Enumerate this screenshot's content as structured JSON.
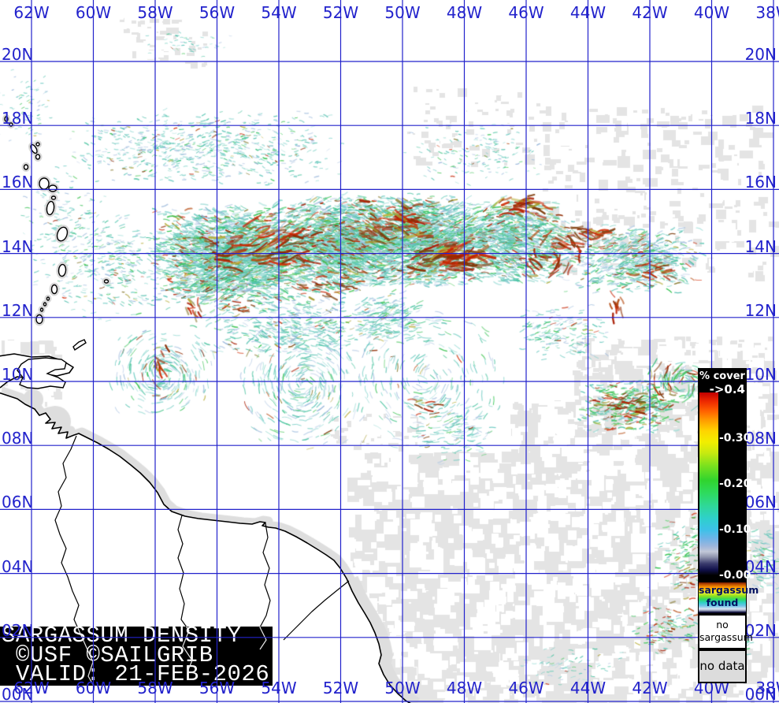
{
  "banner": {
    "line1": "SARGASSUM DENSITY",
    "line2": "©USF ©SAILGRIB",
    "line3": "VALID: 21-FEB-2026",
    "bg": "#000000",
    "fg": "#ffffff"
  },
  "legend": {
    "title": "% cover",
    "max_label": "->0.4",
    "range_max": 0.4,
    "ticks": [
      {
        "label": "-0.30",
        "value": 0.3
      },
      {
        "label": "-0.20",
        "value": 0.2
      },
      {
        "label": "-0.10",
        "value": 0.1
      },
      {
        "label": "-0.00",
        "value": 0.0
      }
    ],
    "colorbar_stops": [
      "#000000 0%",
      "#10104a 3%",
      "#3c3c6e 6.5%",
      "#8e93ad 10%",
      "#c2c8d8 13%",
      "#9db6dc 16%",
      "#6fb4e8 20%",
      "#3cc2e8 25%",
      "#2fd0cc 31%",
      "#2fd898 38%",
      "#2edb5e 45%",
      "#30d42e 52%",
      "#7ce11e 60%",
      "#c8ea10 67%",
      "#f2ee00 73%",
      "#ffd400 79%",
      "#ff9a00 85%",
      "#ff5f00 90%",
      "#ee2a00 95%",
      "#c00000 100%"
    ],
    "found_gradient_stops": [
      "#7a1e00 0%",
      "#c35400 7%",
      "#ff9800 16%",
      "#ffd800 26%",
      "#f2ee33 33%",
      "#8fe11e 44%",
      "#2fd85e 55%",
      "#2fd0c8 66%",
      "#6fc4e8 76%",
      "#d8e4f2 86%",
      "#9098b4 92%",
      "#101040 97%",
      "#000010 100%"
    ],
    "found_line1": "sargassum",
    "found_line2": "found",
    "none_line1": "no",
    "none_line2": "sargassum",
    "nodata_label": "no data"
  },
  "axes": {
    "lon_labels": [
      "62W",
      "60W",
      "58W",
      "56W",
      "54W",
      "52W",
      "50W",
      "48W",
      "46W",
      "44W",
      "42W",
      "40W",
      "38W"
    ],
    "lat_labels": [
      "20N",
      "18N",
      "16N",
      "14N",
      "12N",
      "10N",
      "08N",
      "06N",
      "04N",
      "02N",
      "00N"
    ],
    "label_color": "#2222cc"
  },
  "colors": {
    "grid": "#2222cc",
    "ocean": "#ffffff",
    "no_data": "#e4e4e4",
    "coast": "#000000",
    "island_halo": "#d8d8d8"
  },
  "field": {
    "seed": 11,
    "palettes": {
      "cyan": [
        "#79cfc7",
        "#5fc6bc",
        "#8fd9d3",
        "#a6e0da",
        "#52bfae",
        "#63cab8",
        "#49c3a0"
      ],
      "green": [
        "#4ec96a",
        "#38c24f",
        "#6ed37a",
        "#2fbf7c",
        "#29c24a"
      ],
      "pale": [
        "#a9c3e1",
        "#b9cfe8",
        "#90b1d8",
        "#c4d4ea"
      ],
      "olive": [
        "#a59a2e",
        "#85772a",
        "#b8ae3a"
      ],
      "red": [
        "#c32200",
        "#a81b00",
        "#8f2a00",
        "#b54a10",
        "#d02800",
        "#7c3a08"
      ]
    },
    "mixes": {
      "band": {
        "cyan": 58,
        "green": 17,
        "pale": 13,
        "olive": 5,
        "red": 7
      },
      "bandlite": {
        "cyan": 55,
        "green": 15,
        "pale": 20,
        "olive": 4,
        "red": 6
      },
      "sparse": {
        "cyan": 62,
        "green": 10,
        "pale": 22,
        "olive": 3,
        "red": 3
      },
      "clump": {
        "cyan": 30,
        "green": 38,
        "pale": 8,
        "olive": 8,
        "red": 16
      },
      "red": {
        "red": 88,
        "olive": 12
      }
    },
    "clusters": [
      {
        "lon": 56.5,
        "lat": 17.3,
        "rlon": 4.8,
        "rlat": 1.2,
        "n": 700,
        "len": [
          2,
          6
        ],
        "w": [
          0.8,
          1.6
        ],
        "mix": "sparse"
      },
      {
        "lon": 47.6,
        "lat": 17.1,
        "rlon": 2.4,
        "rlat": 1.0,
        "n": 150,
        "len": [
          2,
          5
        ],
        "w": [
          0.8,
          1.4
        ],
        "mix": "sparse"
      },
      {
        "lon": 62.3,
        "lat": 18.6,
        "rlon": 1.0,
        "rlat": 1.2,
        "n": 70,
        "len": [
          2,
          4
        ],
        "w": [
          0.8,
          1.3
        ],
        "mix": "sparse"
      },
      {
        "lon": 56.9,
        "lat": 20.6,
        "rlon": 1.6,
        "rlat": 0.5,
        "n": 45,
        "len": [
          2,
          4
        ],
        "w": [
          0.8,
          1.2
        ],
        "mix": "sparse"
      },
      {
        "lon": 55.6,
        "lat": 13.9,
        "rlon": 2.7,
        "rlat": 1.7,
        "n": 2400,
        "len": [
          3,
          11
        ],
        "w": [
          0.9,
          1.9
        ],
        "mix": "band"
      },
      {
        "lon": 52.0,
        "lat": 14.3,
        "rlon": 2.3,
        "rlat": 1.6,
        "n": 2100,
        "len": [
          3,
          11
        ],
        "w": [
          0.9,
          1.9
        ],
        "mix": "band"
      },
      {
        "lon": 49.3,
        "lat": 14.4,
        "rlon": 1.8,
        "rlat": 1.5,
        "n": 1500,
        "len": [
          3,
          11
        ],
        "w": [
          0.9,
          1.9
        ],
        "mix": "band"
      },
      {
        "lon": 46.6,
        "lat": 14.4,
        "rlon": 2.2,
        "rlat": 1.4,
        "n": 1300,
        "len": [
          3,
          10
        ],
        "w": [
          0.9,
          1.8
        ],
        "mix": "band"
      },
      {
        "lon": 42.6,
        "lat": 13.8,
        "rlon": 2.3,
        "rlat": 1.1,
        "n": 700,
        "len": [
          3,
          9
        ],
        "w": [
          0.9,
          1.7
        ],
        "mix": "bandlite"
      },
      {
        "lon": 59.3,
        "lat": 13.6,
        "rlon": 2.1,
        "rlat": 1.8,
        "n": 330,
        "len": [
          2,
          7
        ],
        "w": [
          0.8,
          1.5
        ],
        "mix": "sparse"
      },
      {
        "lon": 61.0,
        "lat": 14.6,
        "rlon": 1.5,
        "rlat": 2.3,
        "n": 170,
        "len": [
          2,
          6
        ],
        "w": [
          0.8,
          1.4
        ],
        "mix": "sparse"
      },
      {
        "lon": 53.6,
        "lat": 11.7,
        "rlon": 3.4,
        "rlat": 1.0,
        "n": 420,
        "len": [
          3,
          9
        ],
        "w": [
          0.8,
          1.6
        ],
        "mix": "sparse"
      },
      {
        "lon": 57.8,
        "lat": 10.2,
        "rlon": 1.7,
        "rlat": 1.4,
        "n": 260,
        "len": [
          4,
          12
        ],
        "w": [
          0.8,
          1.5
        ],
        "mix": "sparse",
        "swirl": 1
      },
      {
        "lon": 53.2,
        "lat": 9.9,
        "rlon": 2.3,
        "rlat": 2.0,
        "n": 320,
        "len": [
          4,
          13
        ],
        "w": [
          0.8,
          1.5
        ],
        "mix": "sparse",
        "swirl": 1
      },
      {
        "lon": 49.2,
        "lat": 10.1,
        "rlon": 2.5,
        "rlat": 2.3,
        "n": 230,
        "len": [
          4,
          13
        ],
        "w": [
          0.8,
          1.4
        ],
        "mix": "sparse",
        "swirl": 1
      },
      {
        "lon": 48.4,
        "lat": 8.4,
        "rlon": 1.5,
        "rlat": 1.2,
        "n": 130,
        "len": [
          3,
          9
        ],
        "w": [
          0.8,
          1.4
        ],
        "mix": "sparse"
      },
      {
        "lon": 42.7,
        "lat": 9.2,
        "rlon": 1.7,
        "rlat": 0.9,
        "n": 340,
        "len": [
          3,
          9
        ],
        "w": [
          1,
          2
        ],
        "mix": "clump"
      },
      {
        "lon": 40.9,
        "lat": 9.9,
        "rlon": 1.4,
        "rlat": 0.7,
        "n": 110,
        "len": [
          6,
          16
        ],
        "w": [
          1,
          1.8
        ],
        "mix": "clump",
        "swirl": 1
      },
      {
        "lon": 40.6,
        "lat": 4.6,
        "rlon": 1.3,
        "rlat": 1.3,
        "n": 170,
        "len": [
          3,
          8
        ],
        "w": [
          0.9,
          1.6
        ],
        "mix": "clump"
      },
      {
        "lon": 38.4,
        "lat": 4.4,
        "rlon": 0.9,
        "rlat": 1.1,
        "n": 110,
        "len": [
          3,
          8
        ],
        "w": [
          0.9,
          1.6
        ],
        "mix": "sparse"
      },
      {
        "lon": 41.4,
        "lat": 2.3,
        "rlon": 1.2,
        "rlat": 0.8,
        "n": 100,
        "len": [
          3,
          7
        ],
        "w": [
          0.9,
          1.5
        ],
        "mix": "clump"
      },
      {
        "lon": 39.5,
        "lat": 1.9,
        "rlon": 0.9,
        "rlat": 0.6,
        "n": 70,
        "len": [
          3,
          7
        ],
        "w": [
          0.9,
          1.5
        ],
        "mix": "sparse"
      },
      {
        "lon": 44.6,
        "lat": 1.1,
        "rlon": 1.8,
        "rlat": 0.7,
        "n": 70,
        "len": [
          2,
          6
        ],
        "w": [
          0.8,
          1.3
        ],
        "mix": "sparse"
      },
      {
        "lon": 50.5,
        "lat": 12.0,
        "rlon": 1.2,
        "rlat": 0.9,
        "n": 200,
        "len": [
          3,
          9
        ],
        "w": [
          0.8,
          1.5
        ],
        "mix": "sparse"
      },
      {
        "lon": 44.9,
        "lat": 11.5,
        "rlon": 1.6,
        "rlat": 0.9,
        "n": 160,
        "len": [
          3,
          8
        ],
        "w": [
          0.8,
          1.4
        ],
        "mix": "sparse"
      }
    ],
    "red_clusters": [
      {
        "lon": 54.6,
        "lat": 14.2,
        "rlon": 2.3,
        "rlat": 0.75,
        "n": 60,
        "len": [
          10,
          26
        ],
        "w": [
          1.6,
          3.2
        ]
      },
      {
        "lon": 50.3,
        "lat": 15.0,
        "rlon": 1.2,
        "rlat": 0.8,
        "n": 50,
        "len": [
          8,
          22
        ],
        "w": [
          1.6,
          3.4
        ]
      },
      {
        "lon": 48.7,
        "lat": 13.85,
        "rlon": 1.4,
        "rlat": 0.5,
        "n": 60,
        "len": [
          10,
          26
        ],
        "w": [
          1.8,
          3.6
        ]
      },
      {
        "lon": 46.3,
        "lat": 15.5,
        "rlon": 1.0,
        "rlat": 0.45,
        "n": 28,
        "len": [
          8,
          20
        ],
        "w": [
          1.5,
          3
        ]
      },
      {
        "lon": 45.2,
        "lat": 14.0,
        "rlon": 1.1,
        "rlat": 0.8,
        "n": 30,
        "len": [
          8,
          20
        ],
        "w": [
          1.5,
          2.8
        ],
        "swirl": 1
      },
      {
        "lon": 44.2,
        "lat": 14.6,
        "rlon": 0.8,
        "rlat": 0.4,
        "n": 20,
        "len": [
          8,
          18
        ],
        "w": [
          1.5,
          2.8
        ]
      },
      {
        "lon": 42.1,
        "lat": 13.4,
        "rlon": 0.8,
        "rlat": 0.4,
        "n": 18,
        "len": [
          8,
          18
        ],
        "w": [
          1.5,
          2.8
        ]
      },
      {
        "lon": 43.1,
        "lat": 12.5,
        "rlon": 0.3,
        "rlat": 0.6,
        "n": 12,
        "len": [
          6,
          14
        ],
        "w": [
          1.5,
          2.6
        ],
        "tilt": 80
      },
      {
        "lon": 56.8,
        "lat": 12.5,
        "rlon": 0.3,
        "rlat": 0.5,
        "n": 10,
        "len": [
          6,
          14
        ],
        "w": [
          1.5,
          2.6
        ],
        "tilt": 75
      },
      {
        "lon": 57.9,
        "lat": 10.5,
        "rlon": 0.3,
        "rlat": 0.7,
        "n": 10,
        "len": [
          6,
          16
        ],
        "w": [
          1.5,
          2.6
        ],
        "tilt": 70
      },
      {
        "lon": 52.6,
        "lat": 13.1,
        "rlon": 1.5,
        "rlat": 0.6,
        "n": 26,
        "len": [
          6,
          16
        ],
        "w": [
          1.3,
          2.4
        ]
      },
      {
        "lon": 51.6,
        "lat": 14.4,
        "rlon": 3.4,
        "rlat": 1.3,
        "n": 60,
        "len": [
          4,
          10
        ],
        "w": [
          1.2,
          2
        ]
      },
      {
        "lon": 42.6,
        "lat": 9.25,
        "rlon": 1.1,
        "rlat": 0.5,
        "n": 22,
        "len": [
          6,
          16
        ],
        "w": [
          1.3,
          2.4
        ]
      },
      {
        "lon": 40.8,
        "lat": 3.6,
        "rlon": 0.8,
        "rlat": 1.0,
        "n": 14,
        "len": [
          4,
          10
        ],
        "w": [
          1.2,
          2
        ]
      },
      {
        "lon": 49.3,
        "lat": 9.3,
        "rlon": 0.6,
        "rlat": 0.5,
        "n": 8,
        "len": [
          5,
          12
        ],
        "w": [
          1.3,
          2.2
        ]
      },
      {
        "lon": 55.3,
        "lat": 12.3,
        "rlon": 0.4,
        "rlat": 0.4,
        "n": 8,
        "len": [
          5,
          12
        ],
        "w": [
          1.3,
          2.2
        ]
      }
    ],
    "gray_regions": [
      {
        "lon": [
          51.8,
          38.1
        ],
        "lat": [
          0.1,
          7.8
        ],
        "n": 2400,
        "s": [
          6,
          24
        ],
        "holes": 900
      },
      {
        "lon": [
          46.5,
          38.1
        ],
        "lat": [
          7.6,
          9.4
        ],
        "n": 420,
        "s": [
          5,
          16
        ],
        "holes": 140
      },
      {
        "lon": [
          44.5,
          38.1
        ],
        "lat": [
          9.2,
          11.4
        ],
        "n": 300,
        "s": [
          4,
          14
        ],
        "holes": 90
      },
      {
        "lon": [
          45.5,
          38.1
        ],
        "lat": [
          13.4,
          18.6
        ],
        "n": 260,
        "s": [
          3,
          12
        ],
        "holes": 60
      },
      {
        "lon": [
          50.0,
          45.5
        ],
        "lat": [
          16.8,
          19.2
        ],
        "n": 70,
        "s": [
          3,
          9
        ],
        "holes": 15
      },
      {
        "lon": [
          63.0,
          61.4
        ],
        "lat": [
          9.2,
          11.3
        ],
        "n": 240,
        "s": [
          5,
          16
        ],
        "holes": 60
      },
      {
        "lon": [
          54.2,
          49.8
        ],
        "lat": [
          0.1,
          1.4
        ],
        "n": 260,
        "s": [
          5,
          16
        ],
        "holes": 80
      },
      {
        "lon": [
          59.3,
          56.4
        ],
        "lat": [
          19.9,
          21.4
        ],
        "n": 50,
        "s": [
          3,
          9
        ],
        "holes": 12
      },
      {
        "lon": [
          52.5,
          49.5
        ],
        "lat": [
          8.0,
          9.0
        ],
        "n": 40,
        "s": [
          3,
          8
        ],
        "holes": 10
      }
    ]
  }
}
